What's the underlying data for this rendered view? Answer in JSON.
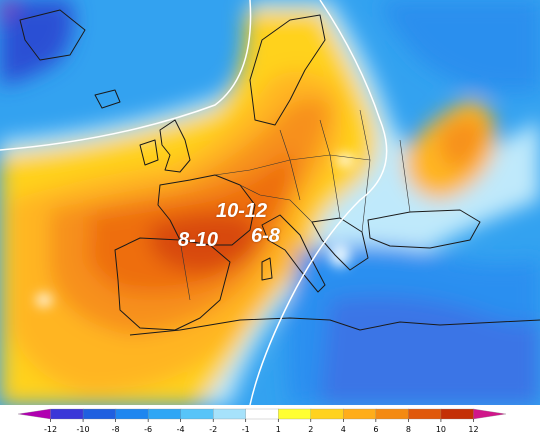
{
  "map": {
    "annotations": [
      {
        "id": "north",
        "text": "10-12"
      },
      {
        "id": "west",
        "text": "8-10"
      },
      {
        "id": "east",
        "text": "6-8"
      }
    ]
  },
  "legend": {
    "ticks": [
      "-12",
      "-10",
      "-8",
      "-6",
      "-4",
      "-2",
      "-1",
      "1",
      "2",
      "4",
      "6",
      "8",
      "10",
      "12"
    ],
    "colors": [
      "#b000b0",
      "#3a37d8",
      "#1f5fe0",
      "#1e86f0",
      "#2fa6f5",
      "#58c4f8",
      "#a6e2fb",
      "#ffffff",
      "#ffff33",
      "#ffd21e",
      "#ffad1a",
      "#f48a12",
      "#e0580a",
      "#c43006",
      "#d0168a"
    ]
  }
}
